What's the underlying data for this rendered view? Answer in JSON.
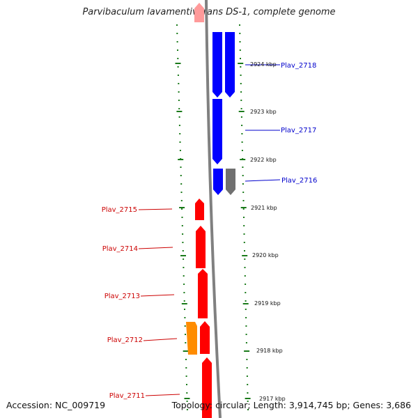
{
  "title": "Parvibaculum lavamentivorans DS-1, complete genome",
  "footer": {
    "accession": "Accession: NC_009719",
    "summary": "Topology: circular; Length: 3,914,745 bp; Genes: 3,686"
  },
  "colors": {
    "forward_gene": "#ff0000",
    "reverse_gene": "#0000ff",
    "other_gene": "#ff8c00",
    "pseudo_gene": "#6e6e6e",
    "backbone": "#808080",
    "ticks": "#1a7a1a"
  },
  "scale_labels": [
    "2924 kbp",
    "2923 kbp",
    "2922 kbp",
    "2921 kbp",
    "2920 kbp",
    "2919 kbp",
    "2918 kbp",
    "2917 kbp"
  ],
  "gene_labels": {
    "right": [
      "Plav_2718",
      "Plav_2717",
      "Plav_2716"
    ],
    "left": [
      "Plav_2715",
      "Plav_2714",
      "Plav_2713",
      "Plav_2712",
      "Plav_2711"
    ]
  }
}
